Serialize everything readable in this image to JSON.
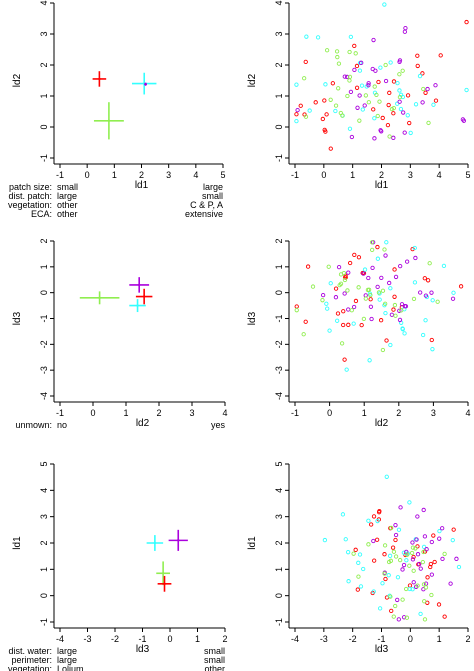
{
  "colors": {
    "red": "#ff0000",
    "green": "#90ee50",
    "cyan": "#33ffff",
    "purple": "#aa00dd",
    "axis": "#000000"
  },
  "chart_data": [
    {
      "type": "scatter",
      "variant": "group-means-with-error-crosses",
      "xlabel": "ld1",
      "ylabel": "ld2",
      "xlim": [
        -1,
        5
      ],
      "ylim": [
        -1,
        4
      ],
      "xticks": [
        "-1",
        "0",
        "1",
        "2",
        "3",
        "4",
        "5"
      ],
      "yticks": [
        "-1",
        "0",
        "1",
        "2",
        "3",
        "4"
      ],
      "points": [
        {
          "color": "red",
          "x": 0.45,
          "y": 1.55,
          "xerr": 0.25,
          "yerr": 0.25
        },
        {
          "color": "cyan",
          "x": 2.1,
          "y": 1.4,
          "xerr": 0.45,
          "yerr": 0.35
        },
        {
          "color": "purple",
          "x": 2.15,
          "y": 1.38,
          "xerr": 0.05,
          "yerr": 0.05
        },
        {
          "color": "green",
          "x": 0.8,
          "y": 0.2,
          "xerr": 0.55,
          "yerr": 0.6
        }
      ],
      "annotations": {
        "labels": [
          "patch size:",
          "dist. patch:",
          "vegetation:",
          "ECA:"
        ],
        "left": [
          "small",
          "large",
          "other",
          "other"
        ],
        "right": [
          "large",
          "small",
          "C & P, A",
          "extensive"
        ]
      }
    },
    {
      "type": "scatter",
      "variant": "raw-scores",
      "xlabel": "ld1",
      "ylabel": "ld2",
      "xlim": [
        -1,
        5
      ],
      "ylim": [
        -1,
        4
      ],
      "xticks": [
        "-1",
        "0",
        "1",
        "2",
        "3",
        "4",
        "5"
      ],
      "yticks": [
        "-1",
        "0",
        "1",
        "2",
        "3",
        "4"
      ],
      "seed": 11,
      "n_per_color": 32,
      "cloud": {
        "red": [
          1.5,
          1.6,
          1.2,
          1.1
        ],
        "cyan": [
          1.8,
          1.4,
          1.3,
          1.0
        ],
        "purple": [
          2.0,
          1.3,
          1.2,
          1.0
        ],
        "green": [
          1.4,
          0.9,
          1.1,
          0.9
        ]
      }
    },
    {
      "type": "scatter",
      "variant": "group-means-with-error-crosses",
      "xlabel": "ld2",
      "ylabel": "ld3",
      "xlim": [
        -1,
        4
      ],
      "ylim": [
        -4,
        2
      ],
      "xticks": [
        "-1",
        "0",
        "1",
        "2",
        "3",
        "4"
      ],
      "yticks": [
        "-4",
        "-3",
        "-2",
        "-1",
        "0",
        "1",
        "2"
      ],
      "points": [
        {
          "color": "green",
          "x": 0.2,
          "y": -0.2,
          "xerr": 0.6,
          "yerr": 0.25
        },
        {
          "color": "purple",
          "x": 1.4,
          "y": 0.3,
          "xerr": 0.3,
          "yerr": 0.3
        },
        {
          "color": "red",
          "x": 1.55,
          "y": -0.15,
          "xerr": 0.25,
          "yerr": 0.3
        },
        {
          "color": "cyan",
          "x": 1.35,
          "y": -0.5,
          "xerr": 0.25,
          "yerr": 0.25
        }
      ],
      "annotations": {
        "labels": [
          "unmown:"
        ],
        "left": [
          "no"
        ],
        "right": [
          "yes"
        ]
      }
    },
    {
      "type": "scatter",
      "variant": "raw-scores",
      "xlabel": "ld2",
      "ylabel": "ld3",
      "xlim": [
        -1,
        4
      ],
      "ylim": [
        -4,
        2
      ],
      "xticks": [
        "-1",
        "0",
        "1",
        "2",
        "3",
        "4"
      ],
      "yticks": [
        "-4",
        "-3",
        "-2",
        "-1",
        "0",
        "1",
        "2"
      ],
      "seed": 23,
      "n_per_color": 32,
      "cloud": {
        "red": [
          1.5,
          1.0,
          -0.3,
          0.9
        ],
        "cyan": [
          1.3,
          1.1,
          -0.5,
          1.2
        ],
        "purple": [
          1.3,
          0.9,
          0.2,
          0.8
        ],
        "green": [
          0.7,
          1.0,
          -0.2,
          0.9
        ]
      }
    },
    {
      "type": "scatter",
      "variant": "group-means-with-error-crosses",
      "xlabel": "ld3",
      "ylabel": "ld1",
      "xlim": [
        -4,
        2
      ],
      "ylim": [
        -1,
        5
      ],
      "xticks": [
        "-4",
        "-3",
        "-2",
        "-1",
        "0",
        "1",
        "2"
      ],
      "yticks": [
        "-1",
        "0",
        "1",
        "2",
        "3",
        "4",
        "5"
      ],
      "points": [
        {
          "color": "cyan",
          "x": -0.55,
          "y": 2.0,
          "xerr": 0.3,
          "yerr": 0.3
        },
        {
          "color": "purple",
          "x": 0.3,
          "y": 2.1,
          "xerr": 0.35,
          "yerr": 0.4
        },
        {
          "color": "green",
          "x": -0.25,
          "y": 0.85,
          "xerr": 0.25,
          "yerr": 0.45
        },
        {
          "color": "red",
          "x": -0.2,
          "y": 0.45,
          "xerr": 0.25,
          "yerr": 0.3
        }
      ],
      "annotations": {
        "labels": [
          "dist. water:",
          "perimeter:",
          "vegetation:"
        ],
        "left": [
          "large",
          "large",
          "Lolium"
        ],
        "right": [
          "small",
          "small",
          "other"
        ]
      }
    },
    {
      "type": "scatter",
      "variant": "raw-scores",
      "xlabel": "ld3",
      "ylabel": "ld1",
      "xlim": [
        -4,
        2
      ],
      "ylim": [
        -1,
        5
      ],
      "xticks": [
        "-4",
        "-3",
        "-2",
        "-1",
        "0",
        "1",
        "2"
      ],
      "yticks": [
        "-1",
        "0",
        "1",
        "2",
        "3",
        "4",
        "5"
      ],
      "seed": 37,
      "n_per_color": 32,
      "cloud": {
        "red": [
          -0.2,
          0.8,
          1.1,
          1.1
        ],
        "cyan": [
          -0.6,
          1.0,
          1.6,
          1.2
        ],
        "purple": [
          0.2,
          0.8,
          1.6,
          1.1
        ],
        "green": [
          -0.3,
          0.7,
          1.0,
          1.0
        ]
      }
    }
  ]
}
